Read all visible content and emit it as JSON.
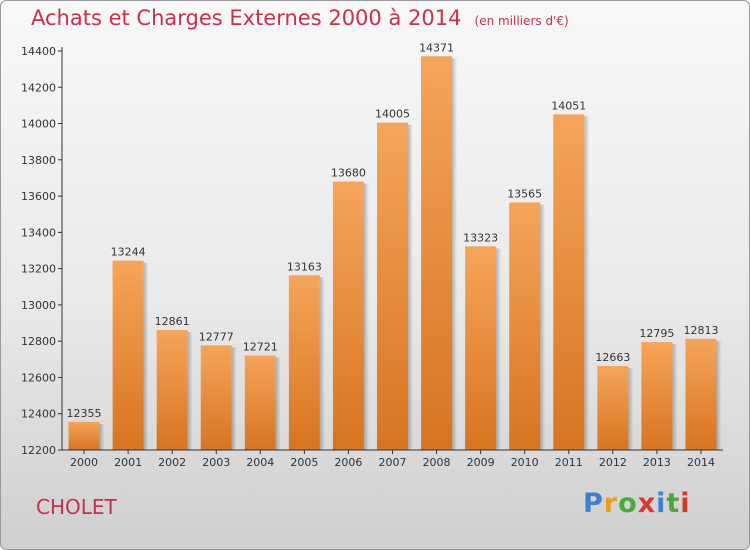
{
  "title": "Achats et Charges Externes 2000 à 2014",
  "subtitle": "(en milliers d'€)",
  "city": "CHOLET",
  "logo": [
    "P",
    "r",
    "o",
    "x",
    "i",
    "t",
    "i"
  ],
  "colors": {
    "title": "#c8304b",
    "bar_top": "#f5a55a",
    "bar_bottom": "#d87420",
    "axis": "#333333"
  },
  "chart_data": {
    "type": "bar",
    "categories": [
      "2000",
      "2001",
      "2002",
      "2003",
      "2004",
      "2005",
      "2006",
      "2007",
      "2008",
      "2009",
      "2010",
      "2011",
      "2012",
      "2013",
      "2014"
    ],
    "values": [
      12355,
      13244,
      12861,
      12777,
      12721,
      13163,
      13680,
      14005,
      14371,
      13323,
      13565,
      14051,
      12663,
      12795,
      12813
    ],
    "ylim": [
      12200,
      14400
    ],
    "yticks": [
      12200,
      12400,
      12600,
      12800,
      13000,
      13200,
      13400,
      13600,
      13800,
      14000,
      14200,
      14400
    ],
    "grid": false,
    "data_labels": true
  }
}
